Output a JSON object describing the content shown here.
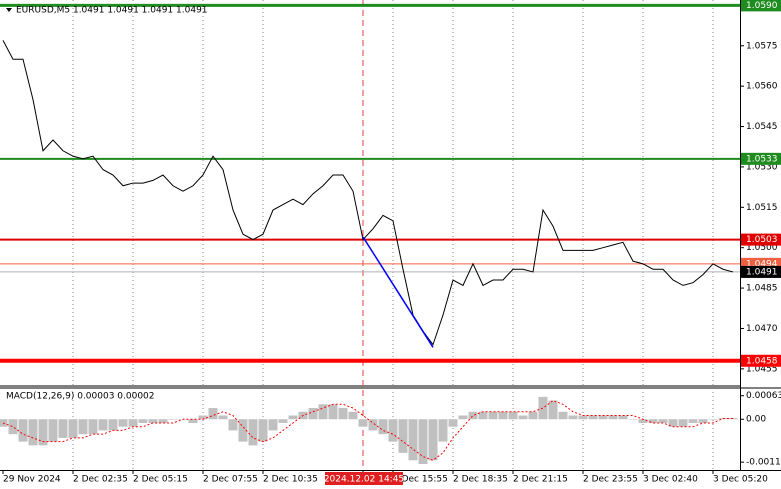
{
  "chart_data": [
    {
      "type": "line",
      "title": "EURUSD,M5  1.0491 1.0491 1.0491 1.0491",
      "categories": [
        "29 Nov 2024",
        null,
        null,
        null,
        null,
        null,
        null,
        "2 Dec 02:35",
        null,
        null,
        null,
        null,
        null,
        "2 Dec 05:15",
        null,
        null,
        null,
        null,
        null,
        null,
        "2 Dec 07:55",
        null,
        null,
        null,
        null,
        null,
        "2 Dec 10:35",
        null,
        null,
        null,
        null,
        null,
        null,
        null,
        null,
        null,
        "2024.12.02 14:45",
        null,
        null,
        "2 Dec 15:55",
        null,
        null,
        null,
        null,
        null,
        "2 Dec 18:35",
        null,
        null,
        null,
        null,
        null,
        "2 Dec 21:15",
        null,
        null,
        null,
        null,
        null,
        null,
        "2 Dec 23:55",
        null,
        null,
        null,
        null,
        null,
        "3 Dec 02:40",
        null,
        null,
        null,
        null,
        null,
        null,
        "3 Dec 05:20",
        null,
        null
      ],
      "highlight_category": 36,
      "series": [
        {
          "color": "#000000",
          "values": [
            1.0577,
            1.057,
            1.057,
            1.0555,
            1.0536,
            1.054,
            1.0536,
            1.0534,
            1.0533,
            1.0534,
            1.0529,
            1.0527,
            1.0523,
            1.0524,
            1.0524,
            1.0525,
            1.0527,
            1.0523,
            1.0521,
            1.0523,
            1.0527,
            1.0534,
            1.0529,
            1.0514,
            1.0505,
            1.0503,
            1.0505,
            1.0514,
            1.0516,
            1.0518,
            1.0516,
            1.052,
            1.0523,
            1.0527,
            1.0527,
            1.0521,
            1.0503,
            1.0507,
            1.0512,
            1.051,
            1.0492,
            1.0475,
            1.0469,
            1.0464,
            1.0475,
            1.0488,
            1.0486,
            1.0494,
            1.0486,
            1.0488,
            1.0488,
            1.0492,
            1.0492,
            1.0491,
            1.0514,
            1.0508,
            1.0499,
            1.0499,
            1.0499,
            1.0499,
            1.05,
            1.0501,
            1.0502,
            1.0495,
            1.0494,
            1.0492,
            1.0492,
            1.0488,
            1.0486,
            1.0487,
            1.049,
            1.0494,
            1.0492,
            1.0491
          ]
        }
      ],
      "ylim": [
        1.0449,
        1.0592
      ],
      "yticks": [
        1.0575,
        1.056,
        1.0545,
        1.053,
        1.0515,
        1.05,
        1.0485,
        1.047,
        1.0455
      ],
      "ytick_labels": [
        "1.0575",
        "1.0560",
        "1.0545",
        "1.0530",
        "1.0515",
        "1.0500",
        "1.0485",
        "1.0470",
        "1.0455"
      ],
      "levels": [
        {
          "value": 1.059,
          "label": "1.0590",
          "color": "#1e8c1e",
          "width": 3
        },
        {
          "value": 1.0533,
          "label": "1.0533",
          "color": "#1e8c1e",
          "width": 2
        },
        {
          "value": 1.0503,
          "label": "1.0503",
          "color": "#e00000",
          "width": 2
        },
        {
          "value": 1.0494,
          "label": "1.0494",
          "color": "#f06040",
          "width": 1
        },
        {
          "value": 1.0491,
          "label": "1.0491",
          "color": "#b0b0b0",
          "width": 1,
          "box": "#000000"
        },
        {
          "value": 1.0458,
          "label": "1.0458",
          "color": "#ff0000",
          "width": 4
        }
      ],
      "trendline": {
        "from": [
          36,
          1.0504
        ],
        "to": [
          43,
          1.0463
        ],
        "color": "#0000ff"
      }
    },
    {
      "type": "macd",
      "title": "MACD(12,26,9) 0.00003 0.00002",
      "series": [
        {
          "type": "bar",
          "color": "#c0c0c0",
          "values": [
            -0.0002,
            -0.0004,
            -0.0006,
            -0.0007,
            -0.0007,
            -0.0006,
            -0.0005,
            -0.0005,
            -0.0004,
            -0.0004,
            -0.0003,
            -0.0003,
            -0.0002,
            -0.0002,
            -0.0001,
            -0.0001,
            -0.0001,
            0,
            0,
            -0.0001,
            0.0001,
            0.0003,
            0.0001,
            -0.0003,
            -0.0006,
            -0.0007,
            -0.0006,
            -0.0003,
            -0.0001,
            0.0001,
            0.0002,
            0.0003,
            0.0004,
            0.0004,
            0.0003,
            0.0002,
            -0.0002,
            -0.0003,
            -0.0004,
            -0.0006,
            -0.0009,
            -0.0011,
            -0.0012,
            -0.0011,
            -0.0006,
            -0.0002,
            0.0001,
            0.0002,
            0.0002,
            0.0002,
            0.0002,
            0.0002,
            0.0001,
            0.0002,
            0.0006,
            0.0005,
            0.0002,
            0.0001,
            0.0001,
            0.0001,
            0.0001,
            0.0001,
            0.0001,
            0,
            -0.0001,
            -0.0001,
            -0.0001,
            -0.0002,
            -0.0002,
            -0.0001,
            -0.0001,
            0,
            3e-05,
            3e-05
          ]
        },
        {
          "type": "line",
          "color": "#ff0000",
          "values": [
            -0.0001,
            -0.0002,
            -0.0004,
            -0.0005,
            -0.0006,
            -0.0006,
            -0.0006,
            -0.0005,
            -0.0005,
            -0.0004,
            -0.0004,
            -0.0003,
            -0.0003,
            -0.0002,
            -0.0002,
            -0.0001,
            -0.0001,
            -0.0001,
            0,
            0,
            0,
            0.0001,
            0.0002,
            0.0001,
            -0.0002,
            -0.0005,
            -0.0006,
            -0.0005,
            -0.0003,
            -0.0001,
            0.0001,
            0.0002,
            0.0003,
            0.0004,
            0.0004,
            0.0003,
            0.0001,
            -0.0001,
            -0.0003,
            -0.0004,
            -0.0006,
            -0.0008,
            -0.001,
            -0.0011,
            -0.0009,
            -0.0005,
            -0.0002,
            0.0001,
            0.0002,
            0.0002,
            0.0002,
            0.0002,
            0.0002,
            0.0002,
            0.0003,
            0.0005,
            0.0004,
            0.0002,
            0.0001,
            0.0001,
            0.0001,
            0.0001,
            0.0001,
            0.0001,
            0,
            -0.0001,
            -0.0001,
            -0.0002,
            -0.0002,
            -0.0002,
            -0.0001,
            -0.0001,
            2e-05,
            2e-05
          ]
        }
      ],
      "ylim": [
        -0.00136,
        0.00081
      ],
      "yticks": [
        0.00063,
        {
          "value": 0,
          "label": "0.00"
        },
        -0.00115
      ]
    }
  ]
}
